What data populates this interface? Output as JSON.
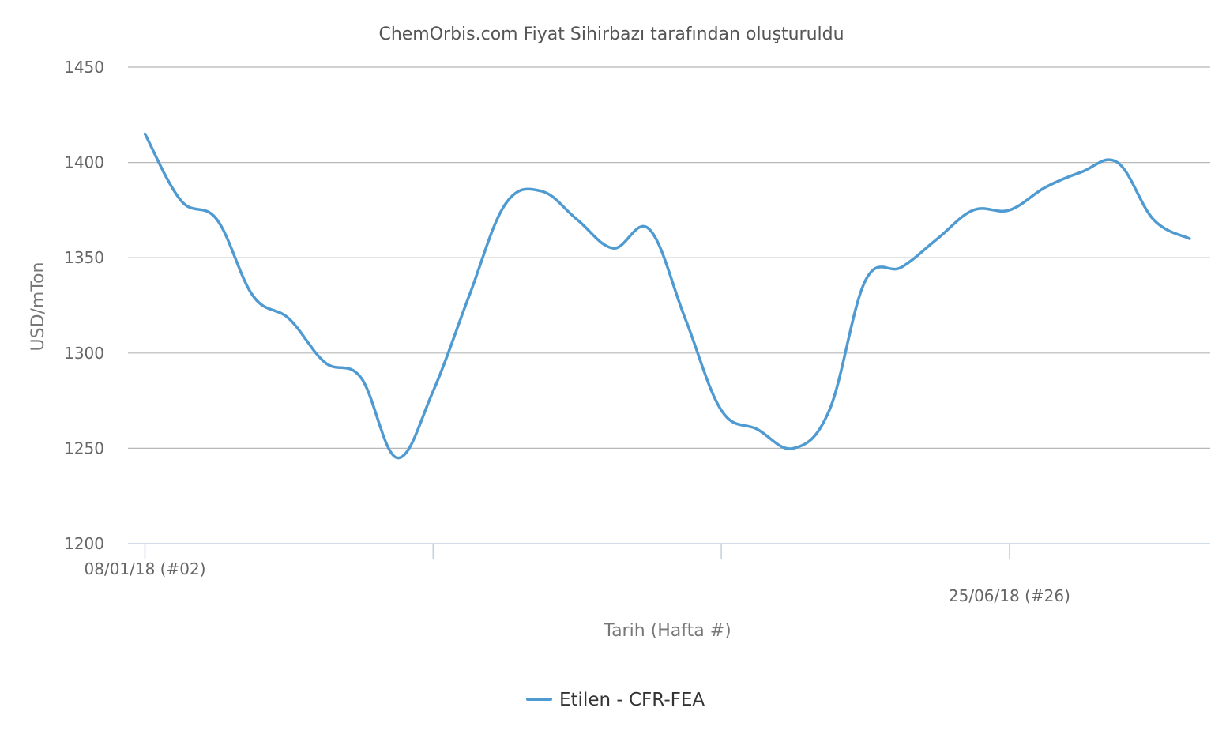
{
  "chart_data": {
    "type": "line",
    "title": "ChemOrbis.com Fiyat Sihirbazı tarafından oluşturuldu",
    "xlabel": "Tarih (Hafta #)",
    "ylabel": "USD/mTon",
    "ylim": [
      1200,
      1450
    ],
    "yticks": [
      "1200",
      "1250",
      "1300",
      "1350",
      "1400",
      "1450"
    ],
    "xtick_labels": [
      {
        "week": 2,
        "label": "08/01/18 (#02)"
      },
      {
        "week": 26,
        "label": "25/06/18 (#26)"
      }
    ],
    "xticks_unlabeled_weeks": [
      10,
      18
    ],
    "xlim_weeks": [
      1.5,
      32
    ],
    "grid": true,
    "legend_position": "bottom-center",
    "colors": {
      "series": "#4e9ad1",
      "grid": "#b8b8b8",
      "axis": "#c0d0e0"
    },
    "series": [
      {
        "name": "Etilen - CFR-FEA",
        "x_weeks": [
          2,
          3,
          4,
          5,
          6,
          7,
          8,
          9,
          10,
          11,
          12,
          13,
          14,
          15,
          16,
          17,
          18,
          19,
          20,
          21,
          22,
          23,
          24,
          25,
          26,
          27,
          28,
          29,
          30,
          31
        ],
        "values": [
          1415,
          1380,
          1370,
          1330,
          1318,
          1295,
          1287,
          1245,
          1280,
          1330,
          1378,
          1385,
          1370,
          1355,
          1365,
          1318,
          1270,
          1260,
          1250,
          1270,
          1338,
          1345,
          1360,
          1375,
          1375,
          1387,
          1395,
          1400,
          1370,
          1360
        ]
      }
    ]
  }
}
